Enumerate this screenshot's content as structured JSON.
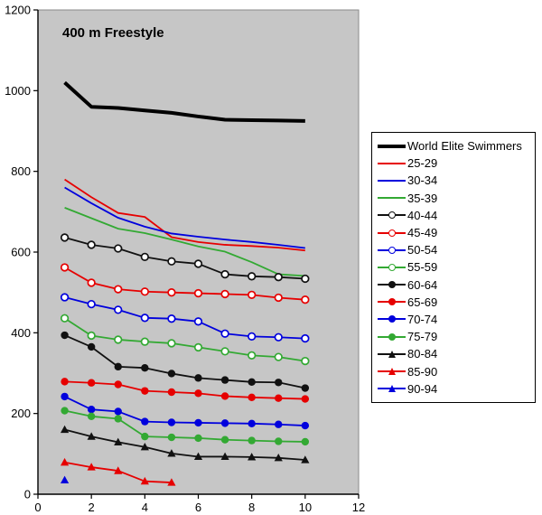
{
  "chart_data": {
    "type": "line",
    "title": "400 m Freestyle",
    "xlabel": "",
    "ylabel": "",
    "xlim": [
      0,
      12
    ],
    "ylim": [
      0,
      1200
    ],
    "x_ticks": [
      0,
      2,
      4,
      6,
      8,
      10,
      12
    ],
    "y_ticks": [
      0,
      200,
      400,
      600,
      800,
      1000,
      1200
    ],
    "grid": false,
    "plot_background": "#c6c6c6",
    "plot_border": "#8a8a8a",
    "axis_color": "#000000",
    "legend_position": "right",
    "x": [
      1,
      2,
      3,
      4,
      5,
      6,
      7,
      8,
      9,
      10
    ],
    "series": [
      {
        "name": "World Elite Swimmers",
        "color": "#000000",
        "marker": "none",
        "line_width": 4,
        "values": [
          1020,
          960,
          957,
          951,
          945,
          936,
          928,
          927,
          926,
          925
        ]
      },
      {
        "name": "25-29",
        "color": "#e60000",
        "marker": "none",
        "line_width": 1.8,
        "values": [
          780,
          736,
          697,
          687,
          637,
          625,
          618,
          615,
          611,
          604
        ]
      },
      {
        "name": "30-34",
        "color": "#0000dd",
        "marker": "none",
        "line_width": 1.8,
        "values": [
          760,
          721,
          685,
          663,
          646,
          638,
          631,
          625,
          618,
          610
        ]
      },
      {
        "name": "35-39",
        "color": "#33a933",
        "marker": "none",
        "line_width": 1.8,
        "values": [
          710,
          684,
          658,
          647,
          631,
          614,
          601,
          575,
          545,
          541
        ]
      },
      {
        "name": "40-44",
        "color": "#111111",
        "marker": "circle-open",
        "line_width": 1.8,
        "values": [
          636,
          618,
          609,
          588,
          577,
          571,
          545,
          540,
          538,
          534
        ]
      },
      {
        "name": "45-49",
        "color": "#e60000",
        "marker": "circle-open",
        "line_width": 1.8,
        "values": [
          562,
          524,
          508,
          502,
          500,
          498,
          496,
          494,
          487,
          482
        ]
      },
      {
        "name": "50-54",
        "color": "#0000dd",
        "marker": "circle-open",
        "line_width": 1.8,
        "values": [
          488,
          471,
          457,
          437,
          435,
          428,
          398,
          391,
          389,
          386
        ]
      },
      {
        "name": "55-59",
        "color": "#33a933",
        "marker": "circle-open",
        "line_width": 1.8,
        "values": [
          436,
          393,
          383,
          378,
          374,
          364,
          354,
          344,
          340,
          330
        ]
      },
      {
        "name": "60-64",
        "color": "#111111",
        "marker": "circle",
        "line_width": 1.8,
        "values": [
          394,
          365,
          316,
          313,
          299,
          288,
          283,
          278,
          277,
          263
        ]
      },
      {
        "name": "65-69",
        "color": "#e60000",
        "marker": "circle",
        "line_width": 1.8,
        "values": [
          279,
          276,
          272,
          256,
          253,
          250,
          243,
          240,
          238,
          236
        ]
      },
      {
        "name": "70-74",
        "color": "#0000dd",
        "marker": "circle",
        "line_width": 1.8,
        "values": [
          242,
          210,
          205,
          180,
          178,
          177,
          176,
          175,
          173,
          170
        ]
      },
      {
        "name": "75-79",
        "color": "#33a933",
        "marker": "circle",
        "line_width": 1.8,
        "values": [
          207,
          193,
          187,
          143,
          141,
          139,
          135,
          133,
          131,
          130
        ]
      },
      {
        "name": "80-84",
        "color": "#111111",
        "marker": "triangle",
        "line_width": 1.8,
        "values": [
          160,
          143,
          129,
          117,
          101,
          93,
          93,
          92,
          90,
          85
        ]
      },
      {
        "name": "85-90",
        "color": "#e60000",
        "marker": "triangle",
        "line_width": 1.8,
        "values": [
          79,
          67,
          58,
          32,
          29
        ]
      },
      {
        "name": "90-94",
        "color": "#0000dd",
        "marker": "triangle",
        "line_width": 1.8,
        "values": [
          35
        ]
      }
    ]
  }
}
